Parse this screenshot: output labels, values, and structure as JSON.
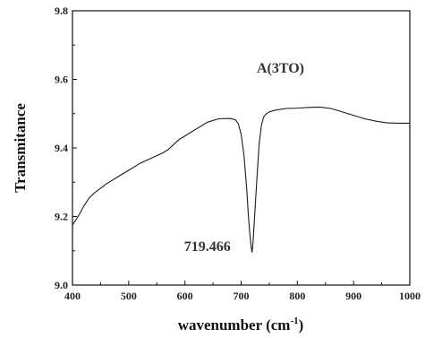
{
  "chart_data": {
    "type": "line",
    "title": "",
    "xlabel": "wavenumber (cm",
    "xlabel_sup": "-1",
    "xlabel_end": ")",
    "ylabel": "Transmitance",
    "xlim": [
      400,
      1000
    ],
    "ylim": [
      9.0,
      9.8
    ],
    "x_ticks": [
      400,
      500,
      600,
      700,
      800,
      900,
      1000
    ],
    "y_ticks": [
      "9.0",
      "9.2",
      "9.4",
      "9.6",
      "9.8"
    ],
    "grid": false,
    "line_color": "#1a1a1a",
    "series": [
      {
        "x": [
          400,
          410,
          420,
          430,
          440,
          460,
          480,
          500,
          520,
          540,
          560,
          570,
          580,
          590,
          600,
          620,
          640,
          660,
          680,
          690,
          695,
          700,
          705,
          710,
          713,
          716,
          718,
          719.466,
          721,
          724,
          728,
          732,
          736,
          740,
          745,
          750,
          760,
          780,
          800,
          820,
          840,
          860,
          880,
          900,
          920,
          940,
          960,
          980,
          1000
        ],
        "y": [
          9.175,
          9.2,
          9.23,
          9.255,
          9.27,
          9.295,
          9.315,
          9.335,
          9.355,
          9.37,
          9.385,
          9.395,
          9.41,
          9.425,
          9.435,
          9.455,
          9.475,
          9.485,
          9.486,
          9.482,
          9.47,
          9.44,
          9.38,
          9.28,
          9.2,
          9.14,
          9.11,
          9.095,
          9.12,
          9.2,
          9.31,
          9.41,
          9.465,
          9.49,
          9.5,
          9.505,
          9.51,
          9.515,
          9.516,
          9.518,
          9.519,
          9.515,
          9.505,
          9.495,
          9.485,
          9.478,
          9.473,
          9.472,
          9.472
        ]
      }
    ],
    "annotations": [
      {
        "text": "A(3TO)",
        "x": 770,
        "y": 9.62
      },
      {
        "text": "719.466",
        "x": 640,
        "y": 9.1
      }
    ]
  }
}
